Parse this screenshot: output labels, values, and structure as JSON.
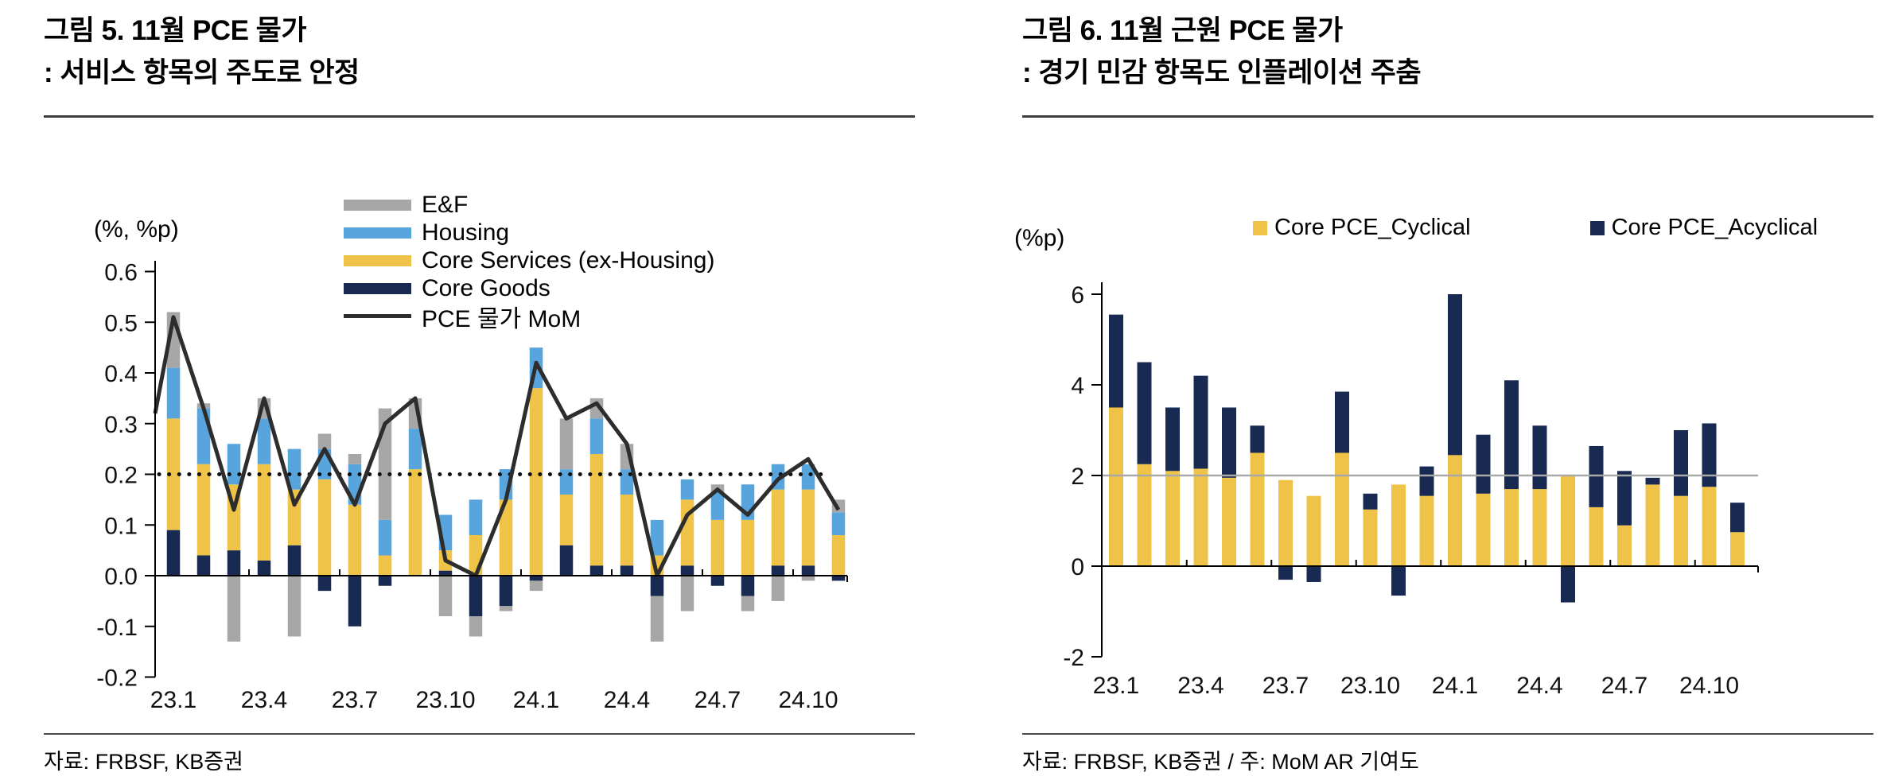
{
  "figures": [
    {
      "figure_label": "그림 5. 11월 PCE 물가",
      "subtitle": ": 서비스 항목의 주도로 안정",
      "unit_label": "(%, %p)",
      "source": "자료: FRBSF, KB증권"
    },
    {
      "figure_label": "그림 6. 11월 근원 PCE 물가",
      "subtitle": ": 경기 민감 항목도 인플레이션 주춤",
      "unit_label": "(%p)",
      "source": "자료: FRBSF, KB증권 / 주: MoM AR 기여도"
    }
  ],
  "chart_data": [
    {
      "type": "bar",
      "subtype": "stacked-bars-with-line",
      "title": "11월 PCE 물가 : 서비스 항목의 주도로 안정",
      "unit_label": "(%, %p)",
      "categories": [
        "23.1",
        "23.2",
        "23.3",
        "23.4",
        "23.5",
        "23.6",
        "23.7",
        "23.8",
        "23.9",
        "23.10",
        "23.11",
        "23.12",
        "24.1",
        "24.2",
        "24.3",
        "24.4",
        "24.5",
        "24.6",
        "24.7",
        "24.8",
        "24.9",
        "24.10",
        "24.11"
      ],
      "x_tick_labels": [
        "23.1",
        "23.4",
        "23.7",
        "23.10",
        "24.1",
        "24.4",
        "24.7",
        "24.10"
      ],
      "ylim": [
        -0.2,
        0.6
      ],
      "y_tick_labels": [
        "0.6",
        "0.5",
        "0.4",
        "0.3",
        "0.2",
        "0.1",
        "0.0",
        "-0.1",
        "-0.2"
      ],
      "grid": "off",
      "legend_position": "top-center-vertical",
      "reference_line": {
        "value": 0.2,
        "style": "dotted",
        "color": "#111111"
      },
      "series": [
        {
          "name": "Core Goods",
          "color": "#182A52",
          "values": [
            0.09,
            0.04,
            0.05,
            0.03,
            0.06,
            -0.03,
            -0.1,
            -0.02,
            0,
            0.01,
            -0.08,
            -0.06,
            -0.01,
            0.06,
            0.02,
            0.02,
            -0.04,
            0.02,
            -0.02,
            -0.04,
            0.02,
            0.02,
            -0.01
          ]
        },
        {
          "name": "Core Services (ex-Housing)",
          "color": "#EFC348",
          "values": [
            0.22,
            0.18,
            0.13,
            0.19,
            0.11,
            0.19,
            0.14,
            0.04,
            0.21,
            0.04,
            0.08,
            0.15,
            0.37,
            0.1,
            0.22,
            0.14,
            0.04,
            0.13,
            0.11,
            0.11,
            0.15,
            0.15,
            0.08
          ]
        },
        {
          "name": "Housing",
          "color": "#58A5DE",
          "values": [
            0.1,
            0.11,
            0.08,
            0.09,
            0.08,
            0.06,
            0.08,
            0.07,
            0.08,
            0.07,
            0.07,
            0.06,
            0.08,
            0.05,
            0.07,
            0.05,
            0.07,
            0.04,
            0.055,
            0.07,
            0.05,
            0.05,
            0.045
          ]
        },
        {
          "name": "E&F",
          "color": "#A7A7A7",
          "values": [
            0.11,
            0.01,
            -0.13,
            0.04,
            -0.12,
            0.03,
            0.02,
            0.22,
            0.06,
            -0.08,
            -0.04,
            -0.01,
            -0.02,
            0.1,
            0.04,
            0.05,
            -0.09,
            -0.07,
            0.015,
            -0.03,
            -0.05,
            -0.01,
            0.025
          ]
        }
      ],
      "line_series": {
        "name": "PCE 물가 MoM",
        "color": "#2D2D2D",
        "edge_start": 0.32,
        "values": [
          0.51,
          0.33,
          0.13,
          0.35,
          0.14,
          0.25,
          0.14,
          0.3,
          0.35,
          0.03,
          0.0,
          0.15,
          0.42,
          0.31,
          0.34,
          0.26,
          0.0,
          0.12,
          0.17,
          0.12,
          0.19,
          0.23,
          0.13
        ]
      },
      "legend": [
        {
          "label": "E&F",
          "color": "#A7A7A7",
          "swatch": "box"
        },
        {
          "label": "Housing",
          "color": "#58A5DE",
          "swatch": "box"
        },
        {
          "label": "Core Services (ex-Housing)",
          "color": "#EFC348",
          "swatch": "box"
        },
        {
          "label": "Core Goods",
          "color": "#182A52",
          "swatch": "box"
        },
        {
          "label": "PCE 물가 MoM",
          "color": "#2D2D2D",
          "swatch": "line"
        }
      ]
    },
    {
      "type": "bar",
      "subtype": "stacked-bars",
      "title": "11월 근원 PCE 물가 : 경기 민감 항목도 인플레이션 주춤",
      "unit_label": "(%p)",
      "categories": [
        "23.1",
        "23.2",
        "23.3",
        "23.4",
        "23.5",
        "23.6",
        "23.7",
        "23.8",
        "23.9",
        "23.10",
        "23.11",
        "23.12",
        "24.1",
        "24.2",
        "24.3",
        "24.4",
        "24.5",
        "24.6",
        "24.7",
        "24.8",
        "24.9",
        "24.10",
        "24.11"
      ],
      "x_tick_labels": [
        "23.1",
        "23.4",
        "23.7",
        "23.10",
        "24.1",
        "24.4",
        "24.7",
        "24.10"
      ],
      "ylim": [
        -2,
        6
      ],
      "y_tick_labels": [
        "6",
        "4",
        "2",
        "0",
        "-2"
      ],
      "grid": "off",
      "legend_position": "top-center-horizontal",
      "reference_line": {
        "value": 2,
        "style": "solid",
        "color": "#A9A9A9"
      },
      "series": [
        {
          "name": "Core PCE_Cyclical",
          "color": "#EFC348",
          "values": [
            3.5,
            2.25,
            2.1,
            2.15,
            1.95,
            2.5,
            1.9,
            1.55,
            2.5,
            1.25,
            1.8,
            1.55,
            2.45,
            1.6,
            1.7,
            1.7,
            2.0,
            1.3,
            0.9,
            1.8,
            1.55,
            1.75,
            0.75
          ]
        },
        {
          "name": "Core PCE_Acyclical",
          "color": "#182A52",
          "values": [
            2.05,
            2.25,
            1.4,
            2.05,
            1.55,
            0.6,
            -0.3,
            -0.35,
            1.35,
            0.35,
            -0.65,
            0.65,
            3.55,
            1.3,
            2.4,
            1.4,
            -0.8,
            1.35,
            1.2,
            0.15,
            1.45,
            1.4,
            0.65
          ]
        }
      ],
      "legend": [
        {
          "label": "Core PCE_Cyclical",
          "color": "#EFC348",
          "swatch": "box"
        },
        {
          "label": "Core PCE_Acyclical",
          "color": "#182A52",
          "swatch": "box"
        }
      ]
    }
  ]
}
